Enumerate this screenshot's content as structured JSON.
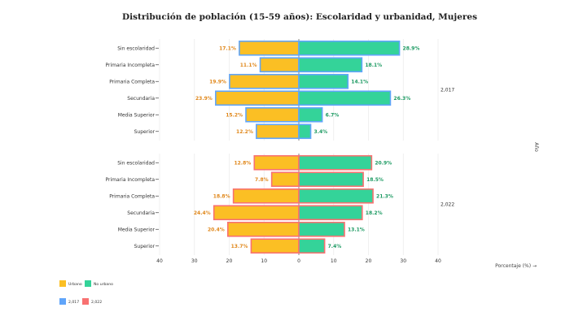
{
  "chart_data": {
    "type": "bar",
    "title": "Distribución de población (15-59 años): Escolaridad y urbanidad, Mujeres",
    "xlabel": "Porcentaje (%) →",
    "facet_label": "Año",
    "xlim": [
      -40,
      40
    ],
    "xticks": [
      -40,
      -30,
      -20,
      -10,
      0,
      10,
      20,
      30,
      40
    ],
    "xtick_labels": [
      "40",
      "30",
      "20",
      "10",
      "0",
      "10",
      "20",
      "30",
      "40"
    ],
    "categories": [
      "Sin escolaridad",
      "Primaria Incompleta",
      "Primaria Completa",
      "Secundaria",
      "Media Superior",
      "Superior"
    ],
    "colors": {
      "urbano": "#fbbf24",
      "no_urbano": "#34d399",
      "y2017": "#60a5fa",
      "y2022": "#f87171",
      "urbano_label": "#e0871a",
      "no_urbano_label": "#1c9a62"
    },
    "legend": {
      "fill": [
        "Urbano",
        "No urbano"
      ],
      "outline": [
        "2,017",
        "2,022"
      ]
    },
    "facets": [
      {
        "label": "2,017",
        "urbano": [
          17.1,
          11.1,
          19.9,
          23.9,
          15.2,
          12.2
        ],
        "no_urbano": [
          28.9,
          18.1,
          14.1,
          26.3,
          6.7,
          3.4
        ]
      },
      {
        "label": "2,022",
        "urbano": [
          12.8,
          7.8,
          18.8,
          24.4,
          20.4,
          13.7
        ],
        "no_urbano": [
          20.9,
          18.5,
          21.3,
          18.2,
          13.1,
          7.4
        ]
      }
    ]
  }
}
